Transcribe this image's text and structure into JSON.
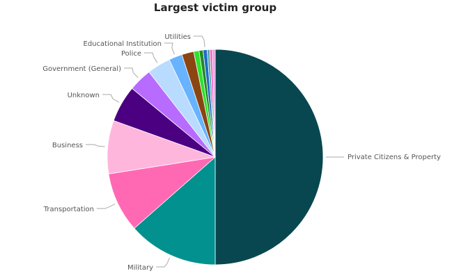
{
  "chart_data": {
    "type": "pie",
    "title": "Largest victim group",
    "slices": [
      {
        "name": "Private Citizens & Property",
        "value": 50.0,
        "color": "#08474F"
      },
      {
        "name": "Military",
        "value": 13.5,
        "color": "#02918F"
      },
      {
        "name": "Transportation",
        "value": 9.0,
        "color": "#FF69B4"
      },
      {
        "name": "Business",
        "value": 8.0,
        "color": "#FFB6DC"
      },
      {
        "name": "Unknown",
        "value": 5.5,
        "color": "#4B0082"
      },
      {
        "name": "Government (General)",
        "value": 3.5,
        "color": "#B86CFF"
      },
      {
        "name": "Police",
        "value": 3.5,
        "color": "#B9DBFF"
      },
      {
        "name": "Educational Institution",
        "value": 2.0,
        "color": "#67B3FF"
      },
      {
        "name": "",
        "value": 1.8,
        "color": "#8B4513"
      },
      {
        "name": "",
        "value": 0.8,
        "color": "#2DE22D"
      },
      {
        "name": "",
        "value": 0.6,
        "color": "#228B22"
      },
      {
        "name": "Utilities",
        "value": 0.6,
        "color": "#1F6BC7"
      },
      {
        "name": "",
        "value": 0.4,
        "color": "#55AAAA"
      },
      {
        "name": "",
        "value": 0.4,
        "color": "#FF66CC"
      },
      {
        "name": "",
        "value": 0.4,
        "color": "#DDA0DD"
      }
    ]
  }
}
